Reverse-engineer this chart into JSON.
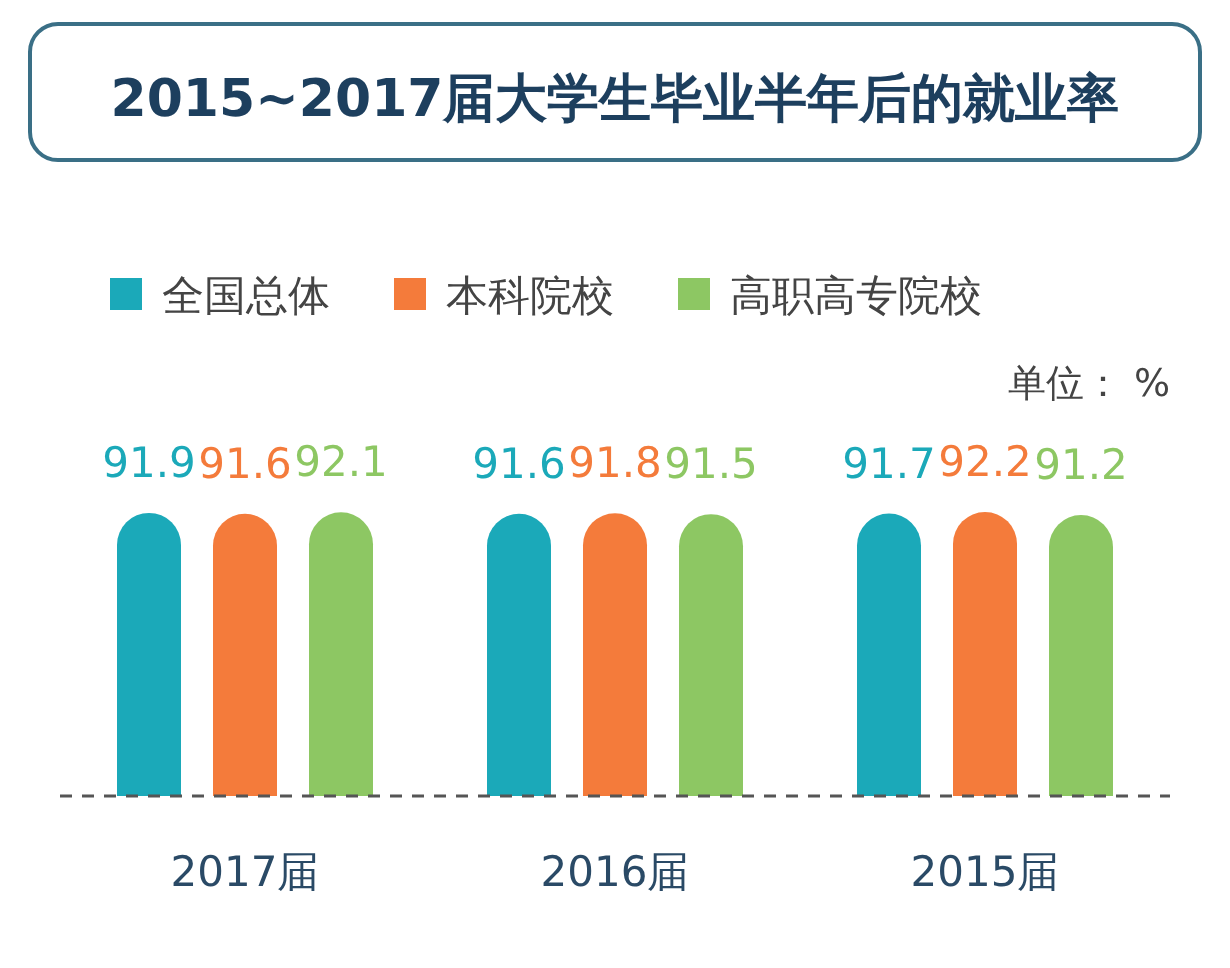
{
  "chart_data": {
    "type": "bar",
    "title": "2015~2017届大学生毕业半年后的就业率",
    "categories": [
      "2017届",
      "2016届",
      "2015届"
    ],
    "series": [
      {
        "name": "全国总体",
        "color": "#1ba9b9",
        "values": [
          91.9,
          91.6,
          91.7
        ]
      },
      {
        "name": "本科院校",
        "color": "#f47b3b",
        "values": [
          91.6,
          91.8,
          92.2
        ]
      },
      {
        "name": "高职高专院校",
        "color": "#8dc763",
        "values": [
          92.1,
          91.5,
          91.2
        ]
      }
    ],
    "data_labels": true,
    "legend": "top left",
    "annotations": [
      "单位： %"
    ]
  }
}
